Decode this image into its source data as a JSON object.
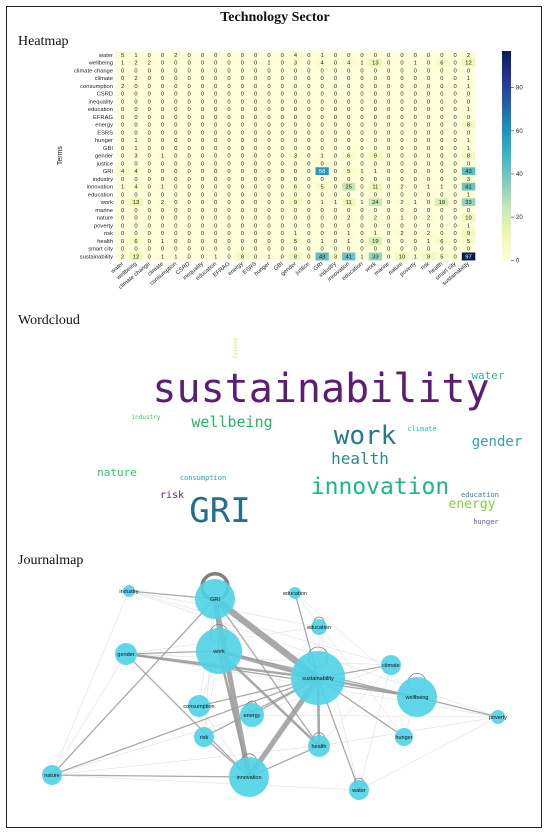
{
  "page": {
    "title": "Technology Sector"
  },
  "sections": {
    "heatmap": "Heatmap",
    "wordcloud": "Wordcloud",
    "journalmap": "Journalmap"
  },
  "heatmap": {
    "ylabel": "Terms",
    "terms": [
      "water",
      "wellbeing",
      "climate change",
      "climate",
      "consumption",
      "CSRD",
      "inequality",
      "education",
      "EFRAG",
      "energy",
      "ESRS",
      "hunger",
      "GBI",
      "gender",
      "justice",
      "GRI",
      "industry",
      "innovation",
      "education",
      "work",
      "marine",
      "nature",
      "poverty",
      "risk",
      "health",
      "smart city",
      "sustainability"
    ],
    "colorbar_ticks": [
      0,
      20,
      40,
      60,
      80
    ],
    "vmin": 0,
    "vmax": 97,
    "colors": [
      "#ffffd9",
      "#edf8b1",
      "#c7e9b4",
      "#7fcdbb",
      "#41b6c4",
      "#1d91c0",
      "#225ea8",
      "#253494",
      "#081d58"
    ],
    "values": [
      [
        5,
        1,
        0,
        0,
        2,
        0,
        0,
        0,
        0,
        0,
        0,
        0,
        0,
        4,
        0,
        1,
        0,
        0,
        0,
        0,
        0,
        0,
        0,
        0,
        0,
        0,
        2
      ],
      [
        1,
        2,
        2,
        0,
        0,
        0,
        0,
        0,
        0,
        0,
        0,
        1,
        0,
        3,
        0,
        4,
        0,
        4,
        1,
        13,
        0,
        0,
        1,
        0,
        6,
        0,
        12
      ],
      [
        0,
        0,
        0,
        0,
        0,
        0,
        0,
        0,
        0,
        0,
        0,
        0,
        0,
        0,
        0,
        0,
        0,
        0,
        0,
        0,
        0,
        0,
        0,
        0,
        0,
        0,
        0
      ],
      [
        0,
        2,
        0,
        0,
        0,
        0,
        0,
        0,
        0,
        0,
        0,
        0,
        0,
        0,
        0,
        0,
        0,
        0,
        0,
        0,
        0,
        0,
        0,
        0,
        0,
        0,
        1
      ],
      [
        2,
        0,
        0,
        0,
        0,
        0,
        0,
        0,
        0,
        0,
        0,
        0,
        0,
        0,
        0,
        0,
        0,
        0,
        0,
        0,
        0,
        0,
        0,
        0,
        0,
        0,
        1
      ],
      [
        0,
        0,
        0,
        0,
        0,
        0,
        0,
        0,
        0,
        0,
        0,
        0,
        0,
        0,
        0,
        0,
        0,
        0,
        0,
        0,
        0,
        0,
        0,
        0,
        0,
        0,
        0
      ],
      [
        0,
        0,
        0,
        0,
        0,
        0,
        0,
        0,
        0,
        0,
        0,
        0,
        0,
        0,
        0,
        0,
        0,
        0,
        0,
        0,
        0,
        0,
        0,
        0,
        0,
        0,
        0
      ],
      [
        0,
        0,
        0,
        0,
        0,
        0,
        0,
        0,
        0,
        0,
        0,
        0,
        0,
        0,
        0,
        0,
        0,
        0,
        0,
        0,
        0,
        0,
        0,
        0,
        0,
        0,
        1
      ],
      [
        0,
        0,
        0,
        0,
        0,
        0,
        0,
        0,
        0,
        0,
        0,
        0,
        0,
        0,
        0,
        0,
        0,
        0,
        0,
        0,
        0,
        0,
        0,
        0,
        0,
        0,
        0
      ],
      [
        0,
        0,
        0,
        0,
        0,
        0,
        0,
        0,
        0,
        0,
        0,
        0,
        0,
        0,
        0,
        0,
        0,
        0,
        0,
        0,
        0,
        0,
        0,
        0,
        0,
        0,
        8
      ],
      [
        0,
        0,
        0,
        0,
        0,
        0,
        0,
        0,
        0,
        0,
        0,
        0,
        0,
        0,
        0,
        0,
        0,
        0,
        0,
        0,
        0,
        0,
        0,
        0,
        0,
        0,
        0
      ],
      [
        0,
        1,
        0,
        0,
        0,
        0,
        0,
        0,
        0,
        0,
        0,
        0,
        0,
        0,
        0,
        0,
        0,
        0,
        0,
        0,
        0,
        0,
        0,
        0,
        0,
        0,
        1
      ],
      [
        0,
        1,
        0,
        0,
        0,
        0,
        0,
        0,
        0,
        0,
        0,
        0,
        0,
        0,
        0,
        0,
        0,
        0,
        0,
        0,
        0,
        0,
        0,
        0,
        0,
        0,
        1
      ],
      [
        0,
        3,
        0,
        1,
        0,
        0,
        0,
        0,
        0,
        0,
        0,
        0,
        0,
        3,
        0,
        1,
        0,
        6,
        0,
        9,
        0,
        0,
        0,
        0,
        0,
        0,
        8
      ],
      [
        0,
        0,
        0,
        0,
        0,
        0,
        0,
        0,
        0,
        0,
        0,
        0,
        0,
        0,
        0,
        0,
        0,
        0,
        0,
        0,
        0,
        0,
        0,
        0,
        0,
        0,
        0
      ],
      [
        4,
        4,
        0,
        0,
        0,
        0,
        0,
        0,
        0,
        0,
        0,
        0,
        0,
        0,
        0,
        58,
        0,
        5,
        1,
        1,
        0,
        0,
        0,
        0,
        0,
        0,
        43
      ],
      [
        0,
        0,
        0,
        0,
        0,
        0,
        0,
        0,
        0,
        0,
        0,
        0,
        0,
        0,
        0,
        0,
        0,
        0,
        0,
        0,
        0,
        0,
        0,
        0,
        0,
        0,
        3
      ],
      [
        1,
        4,
        0,
        1,
        0,
        0,
        0,
        0,
        0,
        0,
        0,
        0,
        0,
        6,
        0,
        5,
        0,
        25,
        0,
        11,
        0,
        2,
        0,
        1,
        1,
        0,
        41
      ],
      [
        0,
        0,
        0,
        0,
        0,
        0,
        0,
        0,
        0,
        0,
        0,
        0,
        0,
        0,
        0,
        0,
        0,
        0,
        0,
        0,
        0,
        0,
        0,
        0,
        0,
        0,
        1
      ],
      [
        0,
        13,
        0,
        2,
        0,
        0,
        0,
        0,
        0,
        0,
        0,
        0,
        0,
        9,
        0,
        1,
        1,
        11,
        1,
        24,
        0,
        2,
        1,
        0,
        19,
        0,
        33
      ],
      [
        0,
        0,
        0,
        0,
        0,
        0,
        0,
        0,
        0,
        0,
        0,
        0,
        0,
        0,
        0,
        0,
        0,
        0,
        0,
        0,
        0,
        0,
        0,
        0,
        0,
        0,
        0
      ],
      [
        0,
        0,
        0,
        0,
        0,
        0,
        0,
        0,
        0,
        0,
        0,
        0,
        0,
        0,
        0,
        0,
        0,
        2,
        0,
        2,
        0,
        1,
        0,
        2,
        0,
        0,
        10
      ],
      [
        0,
        0,
        0,
        0,
        0,
        0,
        0,
        0,
        0,
        0,
        0,
        0,
        0,
        0,
        0,
        0,
        0,
        0,
        0,
        0,
        0,
        0,
        0,
        0,
        0,
        0,
        1
      ],
      [
        0,
        0,
        0,
        0,
        0,
        0,
        0,
        0,
        0,
        0,
        0,
        0,
        0,
        1,
        0,
        0,
        0,
        1,
        0,
        1,
        0,
        2,
        0,
        2,
        0,
        0,
        9
      ],
      [
        0,
        6,
        0,
        1,
        0,
        0,
        0,
        0,
        0,
        0,
        0,
        0,
        0,
        5,
        0,
        1,
        0,
        1,
        0,
        19,
        0,
        0,
        0,
        1,
        6,
        0,
        5
      ],
      [
        0,
        0,
        0,
        0,
        0,
        0,
        0,
        0,
        0,
        0,
        0,
        0,
        0,
        0,
        0,
        0,
        0,
        0,
        0,
        0,
        0,
        0,
        0,
        0,
        0,
        0,
        0
      ],
      [
        2,
        12,
        0,
        1,
        1,
        0,
        0,
        1,
        0,
        8,
        0,
        1,
        0,
        8,
        0,
        43,
        3,
        41,
        1,
        33,
        0,
        10,
        1,
        9,
        5,
        0,
        97
      ]
    ]
  },
  "wordcloud": {
    "words": [
      {
        "text": "sustainability",
        "color": "#5b1e74"
      },
      {
        "text": "GRI",
        "color": "#1f6f8e"
      },
      {
        "text": "work",
        "color": "#267a8f"
      },
      {
        "text": "innovation",
        "color": "#1db58a"
      },
      {
        "text": "health",
        "color": "#2a8a8a"
      },
      {
        "text": "wellbeing",
        "color": "#21b864"
      },
      {
        "text": "gender",
        "color": "#2ba6a0"
      },
      {
        "text": "energy",
        "color": "#7cd43a"
      },
      {
        "text": "water",
        "color": "#2fb6a4"
      },
      {
        "text": "nature",
        "color": "#31c46a"
      },
      {
        "text": "risk",
        "color": "#5a2372"
      },
      {
        "text": "climate",
        "color": "#2fb8b0"
      },
      {
        "text": "consumption",
        "color": "#27a2a8"
      },
      {
        "text": "education",
        "color": "#2f7fa0"
      },
      {
        "text": "hunger",
        "color": "#6b4f9d"
      },
      {
        "text": "industry",
        "color": "#3fca6a"
      },
      {
        "text": "poverty",
        "color": "#e9e25a"
      }
    ]
  },
  "journalmap": {
    "node_color": "#4fd3e5",
    "nodes": [
      "GRI",
      "industry",
      "education",
      "education",
      "work",
      "gender",
      "sustainability",
      "climate",
      "consumption",
      "energy",
      "wellbeing",
      "poverty",
      "risk",
      "health",
      "hunger",
      "nature",
      "innovation",
      "water"
    ],
    "edges": [
      [
        "GRI",
        "sustainability",
        5
      ],
      [
        "GRI",
        "innovation",
        4
      ],
      [
        "work",
        "sustainability",
        3
      ],
      [
        "sustainability",
        "innovation",
        4
      ],
      [
        "work",
        "health",
        2
      ],
      [
        "sustainability",
        "wellbeing",
        2
      ],
      [
        "gender",
        "sustainability",
        2
      ],
      [
        "work",
        "gender",
        1
      ],
      [
        "work",
        "innovation",
        2
      ],
      [
        "GRI",
        "work",
        1
      ],
      [
        "sustainability",
        "health",
        2
      ],
      [
        "nature",
        "sustainability",
        1
      ],
      [
        "risk",
        "sustainability",
        1
      ],
      [
        "energy",
        "sustainability",
        1
      ],
      [
        "gender",
        "wellbeing",
        1
      ],
      [
        "work",
        "wellbeing",
        1
      ],
      [
        "climate",
        "sustainability",
        1
      ],
      [
        "hunger",
        "sustainability",
        1
      ],
      [
        "consumption",
        "sustainability",
        1
      ],
      [
        "innovation",
        "health",
        1
      ],
      [
        "water",
        "sustainability",
        1
      ],
      [
        "GRI",
        "nature",
        1
      ],
      [
        "education",
        "sustainability",
        1
      ],
      [
        "industry",
        "GRI",
        1
      ],
      [
        "wellbeing",
        "poverty",
        1
      ],
      [
        "GRI",
        "health",
        1
      ],
      [
        "gender",
        "innovation",
        1
      ],
      [
        "nature",
        "innovation",
        1
      ],
      [
        "risk",
        "innovation",
        1
      ]
    ]
  }
}
